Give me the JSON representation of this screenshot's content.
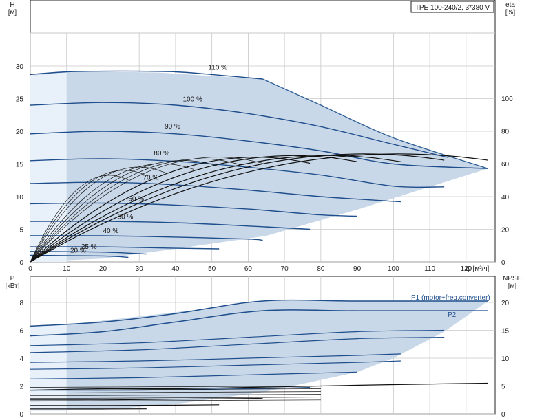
{
  "chart_data": [
    {
      "type": "line",
      "title": "TPE 100-240/2, 3*380 V",
      "xlabel": "Q [м³/ч]",
      "ylabel_left": "H\n[м]",
      "ylabel_right": "eta\n[%]",
      "xlim": [
        0,
        128
      ],
      "ylim_left": [
        0,
        35
      ],
      "ylim_right": [
        0,
        120
      ],
      "x_ticks": [
        0,
        10,
        20,
        30,
        40,
        50,
        60,
        70,
        80,
        90,
        100,
        110,
        120
      ],
      "y_ticks_left": [
        0,
        5,
        10,
        15,
        20,
        25,
        30
      ],
      "y_ticks_right": [
        0,
        20,
        40,
        60,
        80,
        100
      ],
      "operating_area_envelope": [
        [
          0,
          28.5
        ],
        [
          5,
          29
        ],
        [
          20,
          29.1
        ],
        [
          35,
          29
        ],
        [
          64,
          28
        ],
        [
          80,
          24
        ],
        [
          100,
          19
        ],
        [
          126,
          14.3
        ],
        [
          110,
          11.5
        ],
        [
          90,
          8
        ],
        [
          65,
          4
        ],
        [
          40,
          2
        ],
        [
          20,
          0.5
        ],
        [
          0,
          0
        ]
      ],
      "series": [
        {
          "name": "110 %",
          "x": [
            0,
            10,
            20,
            30,
            40,
            50,
            64
          ],
          "y": [
            28.7,
            29.1,
            29.2,
            29.2,
            29.1,
            28.7,
            28
          ]
        },
        {
          "name": "100 %",
          "x": [
            0,
            20,
            40,
            60,
            80,
            100,
            115
          ],
          "y": [
            24,
            24.4,
            24,
            22.7,
            20.7,
            18,
            16
          ]
        },
        {
          "name": "90 %",
          "x": [
            0,
            20,
            40,
            60,
            80,
            100,
            126
          ],
          "y": [
            19.6,
            20,
            19.6,
            18.5,
            17,
            15,
            14.3
          ]
        },
        {
          "name": "80 %",
          "x": [
            0,
            20,
            40,
            60,
            80,
            100,
            114
          ],
          "y": [
            15.5,
            15.8,
            15.4,
            14.5,
            13.3,
            11.6,
            11.5
          ]
        },
        {
          "name": "70 %",
          "x": [
            0,
            20,
            40,
            60,
            80,
            102
          ],
          "y": [
            12,
            12.2,
            11.8,
            11,
            10,
            9.2
          ]
        },
        {
          "name": "60 %",
          "x": [
            0,
            20,
            40,
            60,
            80,
            90
          ],
          "y": [
            8.9,
            9,
            8.7,
            8.1,
            7.2,
            7
          ]
        },
        {
          "name": "50 %",
          "x": [
            0,
            20,
            40,
            60,
            77
          ],
          "y": [
            6.2,
            6.2,
            6,
            5.5,
            5
          ]
        },
        {
          "name": "40 %",
          "x": [
            0,
            20,
            40,
            60,
            64
          ],
          "y": [
            4,
            4,
            3.8,
            3.5,
            3.3
          ]
        },
        {
          "name": "",
          "x": [
            0,
            20,
            40,
            52
          ],
          "y": [
            2.3,
            2.3,
            2.1,
            2.0
          ]
        },
        {
          "name": "25 %",
          "x": [
            0,
            20,
            32
          ],
          "y": [
            1.6,
            1.5,
            1.2
          ]
        },
        {
          "name": "20 %",
          "x": [
            0,
            20,
            27
          ],
          "y": [
            1.0,
            0.9,
            0.7
          ]
        }
      ]
    },
    {
      "type": "line",
      "xlabel": "",
      "ylabel_left": "P\n[кВт]",
      "ylabel_right": "NPSH\n[м]",
      "xlim": [
        0,
        128
      ],
      "ylim_left": [
        0,
        9
      ],
      "ylim_right": [
        0,
        22.5
      ],
      "y_ticks_left": [
        0,
        2,
        4,
        6,
        8
      ],
      "y_ticks_right": [
        0,
        5,
        10,
        15,
        20
      ],
      "legend": [
        "P1 (motor+freq.converter)",
        "P2"
      ],
      "operating_area_envelope": [
        [
          0,
          6.3
        ],
        [
          10,
          6.4
        ],
        [
          30,
          7
        ],
        [
          50,
          7.6
        ],
        [
          64,
          8.1
        ],
        [
          126,
          8.1
        ],
        [
          114,
          5.9
        ],
        [
          100,
          4
        ],
        [
          90,
          3
        ],
        [
          65,
          1.6
        ],
        [
          40,
          0.7
        ],
        [
          20,
          0.3
        ],
        [
          0,
          0.2
        ]
      ],
      "series": [
        {
          "name": "P1 (motor+freq.converter)",
          "x": [
            0,
            20,
            40,
            64,
            90,
            126
          ],
          "y": [
            6.3,
            6.6,
            7.2,
            8.1,
            8.1,
            8.1
          ]
        },
        {
          "name": "P2",
          "x": [
            0,
            20,
            40,
            64,
            90,
            126
          ],
          "y": [
            5.6,
            5.9,
            6.6,
            7.4,
            7.4,
            7.4
          ]
        },
        {
          "name": "",
          "x": [
            0,
            30,
            60,
            90,
            114
          ],
          "y": [
            4.9,
            5.1,
            5.5,
            5.9,
            6.0
          ]
        },
        {
          "name": "",
          "x": [
            0,
            30,
            60,
            90,
            114
          ],
          "y": [
            4.4,
            4.6,
            5.0,
            5.4,
            5.5
          ]
        },
        {
          "name": "",
          "x": [
            0,
            30,
            60,
            90,
            102
          ],
          "y": [
            3.7,
            3.8,
            4.0,
            4.2,
            4.3
          ]
        },
        {
          "name": "",
          "x": [
            0,
            30,
            60,
            90,
            102
          ],
          "y": [
            3.2,
            3.3,
            3.5,
            3.7,
            3.8
          ]
        },
        {
          "name": "",
          "x": [
            0,
            30,
            60,
            90
          ],
          "y": [
            2.5,
            2.6,
            2.8,
            3.0
          ]
        },
        {
          "name": "",
          "x": [
            0,
            30,
            60,
            77
          ],
          "y": [
            1.7,
            1.7,
            1.8,
            1.9
          ]
        },
        {
          "name": "NPSH",
          "x": [
            0,
            20,
            40,
            60,
            80,
            100,
            126
          ],
          "y": [
            1.7,
            1.8,
            1.8,
            1.9,
            2.0,
            2.1,
            2.2
          ]
        },
        {
          "name": "",
          "x": [
            0,
            20,
            40,
            60,
            64
          ],
          "y": [
            1.0,
            1.0,
            1.05,
            1.1,
            1.1
          ]
        },
        {
          "name": "",
          "x": [
            0,
            20,
            40,
            52
          ],
          "y": [
            0.6,
            0.6,
            0.62,
            0.65
          ]
        },
        {
          "name": "",
          "x": [
            0,
            20,
            32
          ],
          "y": [
            0.35,
            0.35,
            0.36
          ]
        }
      ]
    }
  ],
  "colors": {
    "area_fill": "#c9d8e8",
    "area_light": "#e8f1fa",
    "envelope_stroke": "#2e5f96",
    "curve": "#1f4e8c",
    "eta": "#111111",
    "grid": "#c8c8c8",
    "frame": "#222222",
    "legend_text": "#1f4e8c"
  }
}
